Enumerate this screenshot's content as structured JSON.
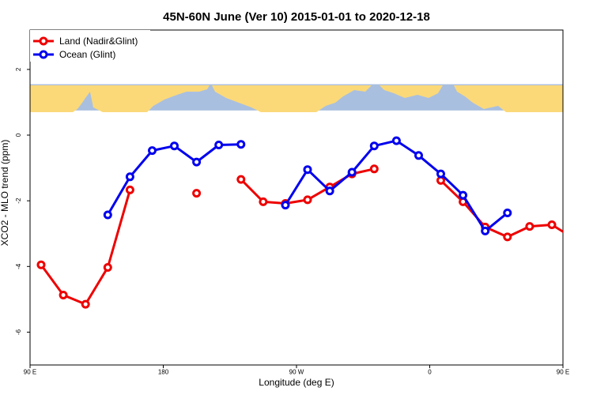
{
  "chart_data": {
    "type": "line",
    "title": "45N-60N June (Ver 10)   2015-01-01 to 2020-12-18",
    "xlabel": "Longitude (deg E)",
    "ylabel": "XCO2 - MLO trend (ppm)",
    "xlim": [
      90,
      450
    ],
    "ylim": [
      -7,
      3.2
    ],
    "x_ticks": [
      {
        "value": 90,
        "label": "90 E"
      },
      {
        "value": 180,
        "label": "180"
      },
      {
        "value": 270,
        "label": "90 W"
      },
      {
        "value": 360,
        "label": "0"
      },
      {
        "value": 450,
        "label": "90 E"
      },
      {
        "value": 540,
        "label": "180"
      }
    ],
    "y_ticks": [
      {
        "value": 2,
        "label": "2"
      },
      {
        "value": 0,
        "label": "0"
      },
      {
        "value": -2,
        "label": "-2"
      },
      {
        "value": -4,
        "label": "-4"
      },
      {
        "value": -6,
        "label": "-6"
      }
    ],
    "legend": {
      "placement": "top-left"
    },
    "series": [
      {
        "name": "Land (Nadir&Glint)",
        "color": "#ee0000",
        "points": [
          [
            97.5,
            -3.95
          ],
          [
            112.5,
            -4.87
          ],
          [
            127.5,
            -5.15
          ],
          [
            142.5,
            -4.03
          ],
          [
            157.5,
            -1.67
          ],
          null,
          [
            202.5,
            -1.77
          ],
          null,
          [
            232.5,
            -1.35
          ],
          [
            247.5,
            -2.03
          ],
          [
            262.5,
            -2.08
          ],
          [
            277.5,
            -1.97
          ],
          [
            292.5,
            -1.58
          ],
          [
            307.5,
            -1.18
          ],
          [
            322.5,
            -1.03
          ],
          null,
          [
            367.5,
            -1.38
          ],
          [
            382.5,
            -2.03
          ],
          [
            397.5,
            -2.8
          ],
          [
            412.5,
            -3.1
          ],
          [
            427.5,
            -2.78
          ],
          [
            442.5,
            -2.73
          ],
          [
            457.5,
            -3.15
          ],
          [
            472.5,
            -3.95
          ],
          [
            487.5,
            -4.87
          ],
          [
            502.5,
            -5.15
          ],
          [
            517.5,
            -4.03
          ],
          [
            532.5,
            -1.67
          ]
        ]
      },
      {
        "name": "Ocean (Glint)",
        "color": "#0000ee",
        "points": [
          [
            142.5,
            -2.43
          ],
          [
            157.5,
            -1.27
          ],
          [
            172.5,
            -0.47
          ],
          [
            187.5,
            -0.33
          ],
          [
            202.5,
            -0.82
          ],
          [
            217.5,
            -0.3
          ],
          [
            232.5,
            -0.28
          ],
          null,
          [
            262.5,
            -2.13
          ],
          [
            277.5,
            -1.05
          ],
          [
            292.5,
            -1.7
          ],
          [
            307.5,
            -1.13
          ],
          [
            322.5,
            -0.33
          ],
          [
            337.5,
            -0.17
          ],
          [
            352.5,
            -0.62
          ],
          [
            367.5,
            -1.18
          ],
          [
            382.5,
            -1.83
          ],
          [
            397.5,
            -2.92
          ],
          [
            412.5,
            -2.37
          ],
          null,
          [
            517.5,
            -2.43
          ],
          [
            532.5,
            -1.27
          ],
          [
            547.5,
            -0.47
          ]
        ]
      }
    ]
  },
  "map_band": {
    "ocean_color": "#a9bfe0",
    "land_color": "#fbd979",
    "y_range": [
      0.75,
      1.55
    ]
  }
}
